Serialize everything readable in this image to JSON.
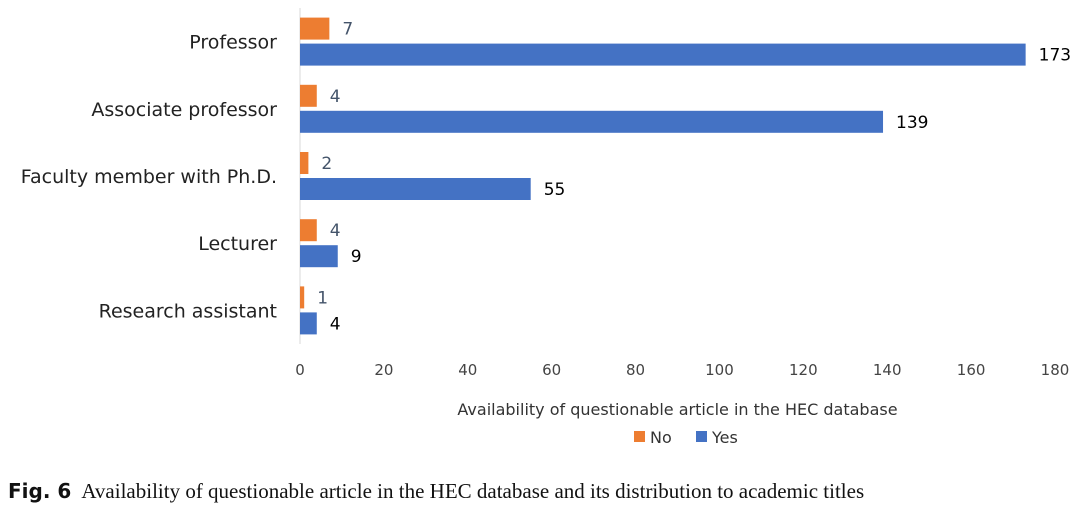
{
  "chart_data": {
    "type": "bar",
    "orientation": "horizontal",
    "categories": [
      "Professor",
      "Associate professor",
      "Faculty member with Ph.D.",
      "Lecturer",
      "Research assistant"
    ],
    "series": [
      {
        "name": "No",
        "color": "#ED7D31",
        "values": [
          7,
          4,
          2,
          4,
          1
        ]
      },
      {
        "name": "Yes",
        "color": "#4472C4",
        "values": [
          173,
          139,
          55,
          9,
          4
        ]
      }
    ],
    "xlabel": "Availability of questionable article in the HEC database",
    "xlim": [
      0,
      180
    ],
    "xticks": [
      "0",
      "20",
      "40",
      "60",
      "80",
      "100",
      "120",
      "140",
      "160",
      "180"
    ],
    "grid": false,
    "legend_position": "bottom"
  },
  "caption": {
    "fig_label": "Fig. 6",
    "text": "Availability of questionable article in the HEC database and its distribution to academic titles"
  }
}
